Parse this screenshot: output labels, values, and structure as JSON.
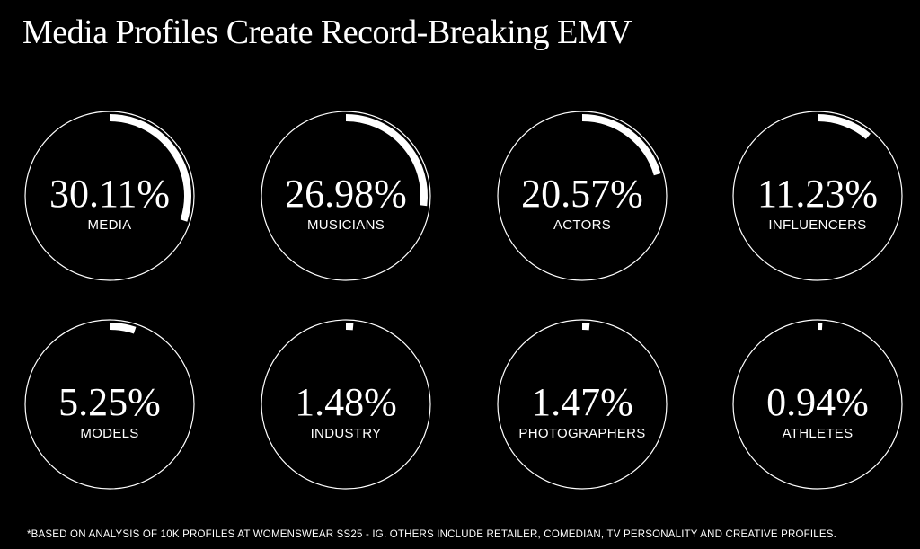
{
  "title": "Media Profiles Create Record-Breaking EMV",
  "footnote": "*BASED ON ANALYSIS OF 10K PROFILES AT WOMENSWEAR SS25 - IG. OTHERS INCLUDE RETAILER, COMEDIAN, TV PERSONALITY AND CREATIVE PROFILES.",
  "colors": {
    "background": "#000000",
    "foreground": "#ffffff"
  },
  "chart_data": {
    "type": "pie",
    "title": "Media Profiles Create Record-Breaking EMV",
    "unit": "%",
    "categories": [
      "MEDIA",
      "MUSICIANS",
      "ACTORS",
      "INFLUENCERS",
      "MODELS",
      "INDUSTRY",
      "PHOTOGRAPHERS",
      "ATHLETES"
    ],
    "values": [
      30.11,
      26.98,
      20.57,
      11.23,
      5.25,
      1.48,
      1.47,
      0.94
    ],
    "labels": [
      "30.11%",
      "26.98%",
      "20.57%",
      "11.23%",
      "5.25%",
      "1.48%",
      "1.47%",
      "0.94%"
    ]
  }
}
